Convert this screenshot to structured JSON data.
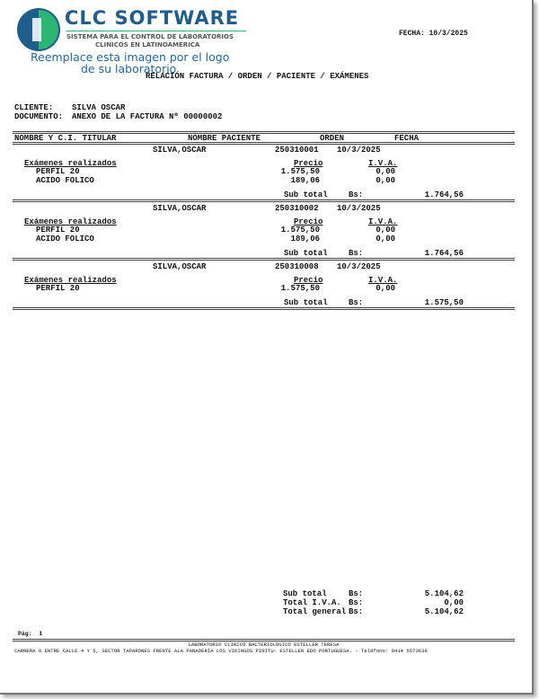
{
  "logo": {
    "brand": "CLC SOFTWARE",
    "tagline1": "SISTEMA PARA EL CONTROL DE LABORATORIOS",
    "tagline2": "CLINICOS EN LATINOAMERICA",
    "placeholder1": "Reemplace esta imagen por el logo",
    "placeholder2": "de su laboratorio",
    "brand_color": "#1e5d8c",
    "accent_color": "#2bb673"
  },
  "header": {
    "fecha": "FECHA: 10/3/2025",
    "title": "RELACIÓN FACTURA / ORDEN / PACIENTE / EXÁMENES",
    "cliente_label": "CLIENTE:",
    "cliente": "SILVA OSCAR",
    "documento_label": "DOCUMENTO:",
    "documento": "ANEXO DE LA FACTURA Nº 00000002"
  },
  "columns": {
    "titular": "NOMBRE Y C.I. TITULAR",
    "paciente": "NOMBRE PACIENTE",
    "orden": "ORDEN",
    "fecha": "FECHA"
  },
  "labels": {
    "examenes": "Exámenes realizados",
    "precio": "Precio",
    "iva": "I.V.A.",
    "subtotal": "Sub total",
    "bs": "Bs:"
  },
  "groups": [
    {
      "paciente": "SILVA,OSCAR",
      "orden": "250310001",
      "fecha": "10/3/2025",
      "items": [
        {
          "name": "PERFIL 20",
          "precio": "1.575,50",
          "iva": "0,00"
        },
        {
          "name": "ACIDO FOLICO",
          "precio": "189,06",
          "iva": "0,00"
        }
      ],
      "subtotal": "1.764,56"
    },
    {
      "paciente": "SILVA,OSCAR",
      "orden": "250310002",
      "fecha": "10/3/2025",
      "items": [
        {
          "name": "PERFIL 20",
          "precio": "1.575,50",
          "iva": "0,00"
        },
        {
          "name": "ACIDO FOLICO",
          "precio": "189,06",
          "iva": "0,00"
        }
      ],
      "subtotal": "1.764,56"
    },
    {
      "paciente": "SILVA,OSCAR",
      "orden": "250310008",
      "fecha": "10/3/2025",
      "items": [
        {
          "name": "PERFIL 20",
          "precio": "1.575,50",
          "iva": "0,00"
        }
      ],
      "subtotal": "1.575,50"
    }
  ],
  "totals": {
    "subtotal_label": "Sub total",
    "subtotal": "5.104,62",
    "iva_label": "Total I.V.A.",
    "iva": "0,00",
    "general_label": "Total general",
    "general": "5.104,62",
    "bs": "Bs:"
  },
  "footer": {
    "page": "Pág:  1",
    "lab": "LABORATORIO CLINICO BACTERIOLOGICO ESTELLER TERESA",
    "address": "CARRERA 8 ENTRE CALLE 4 Y 5, SECTOR TAPARONES FRENTE ALA PANADERÍA LOS VIKINGOS PIRITU- ESTELLER EDO PORTUGUESA. - Teléfono: 0414 5573638"
  }
}
